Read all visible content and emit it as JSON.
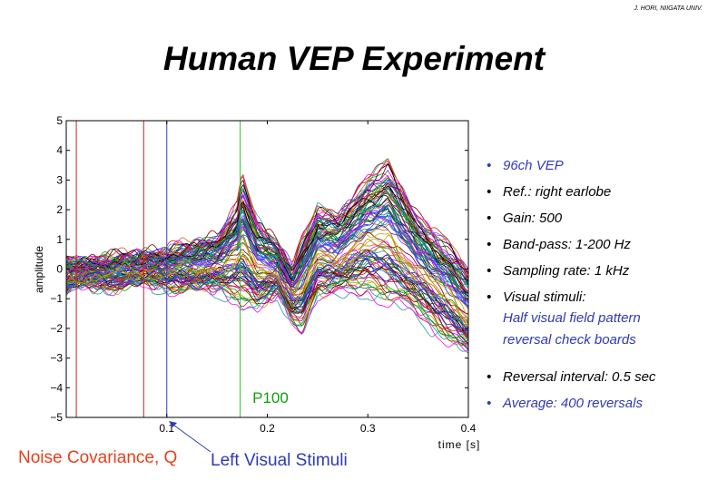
{
  "credit": "J. HORI, NIIGATA UNIV.",
  "title": "Human VEP Experiment",
  "bullets": [
    {
      "text": "96ch VEP",
      "color": "#2e3ab5"
    },
    {
      "text": "Ref.: right earlobe",
      "color": "#000000"
    },
    {
      "text": "Gain: 500",
      "color": "#000000"
    },
    {
      "text": "Band-pass: 1-200 Hz",
      "color": "#000000"
    },
    {
      "text": "Sampling rate: 1 kHz",
      "color": "#000000"
    },
    {
      "text": "Visual stimuli:",
      "color": "#000000",
      "sub": [
        "Half visual field pattern",
        "reversal check boards"
      ]
    },
    {
      "text": "Reversal interval: 0.5 sec",
      "color": "#000000"
    },
    {
      "text": "Average: 400 reversals",
      "color": "#2e3ab5"
    }
  ],
  "annotations": {
    "noise_covariance": "Noise Covariance, Q",
    "left_visual_stimuli": "Left Visual Stimuli",
    "p100": "P100"
  },
  "chart_data": {
    "type": "line",
    "xlabel": "time [s]",
    "ylabel": "amplitude",
    "xlim": [
      0,
      0.4
    ],
    "ylim": [
      -5,
      5
    ],
    "x_ticks": [
      0.1,
      0.2,
      0.3,
      0.4
    ],
    "x_tick_labels": [
      "0.1",
      "0.2",
      "0.3",
      "0.4"
    ],
    "y_ticks": [
      -5,
      -4,
      -3,
      -2,
      -1,
      0,
      1,
      2,
      3,
      4,
      5
    ],
    "y_tick_labels": [
      "−5",
      "−4",
      "−3",
      "−2",
      "−1",
      "0",
      "1",
      "2",
      "3",
      "4",
      "5"
    ],
    "channel_count": 96,
    "vertical_markers": [
      {
        "x": 0.01,
        "color": "#d02020"
      },
      {
        "x": 0.077,
        "color": "#d02020"
      },
      {
        "x": 0.1,
        "color": "#3a3ab8"
      },
      {
        "x": 0.173,
        "color": "#30c030"
      }
    ],
    "envelope": {
      "x": [
        0,
        0.02,
        0.05,
        0.08,
        0.1,
        0.12,
        0.15,
        0.17,
        0.175,
        0.19,
        0.21,
        0.225,
        0.235,
        0.25,
        0.27,
        0.3,
        0.32,
        0.35,
        0.38,
        0.4
      ],
      "upper": [
        0.4,
        0.3,
        0.5,
        0.6,
        0.7,
        0.9,
        1.2,
        2.3,
        3.4,
        1.8,
        1.0,
        0.2,
        1.2,
        2.2,
        2.0,
        3.3,
        3.9,
        2.0,
        1.0,
        0.2
      ],
      "lower": [
        -0.9,
        -0.6,
        -0.7,
        -0.6,
        -0.7,
        -0.8,
        -0.9,
        -1.2,
        -1.5,
        -1.6,
        -1.1,
        -1.9,
        -2.2,
        -1.1,
        -1.1,
        -1.0,
        -1.5,
        -1.8,
        -2.6,
        -3.2
      ]
    }
  }
}
